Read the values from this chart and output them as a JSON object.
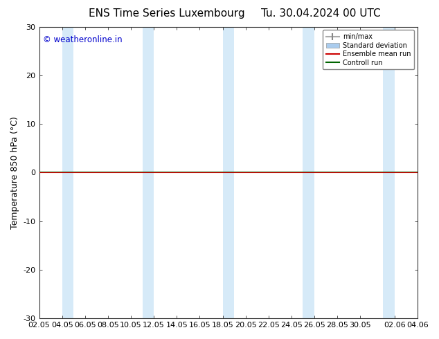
{
  "title_left": "ENS Time Series Luxembourg",
  "title_right": "Tu. 30.04.2024 00 UTC",
  "ylabel": "Temperature 850 hPa (°C)",
  "watermark": "© weatheronline.in",
  "watermark_color": "#0000cc",
  "ylim": [
    -30,
    30
  ],
  "yticks": [
    -30,
    -20,
    -10,
    0,
    10,
    20,
    30
  ],
  "xtick_labels": [
    "02.05",
    "04.05",
    "06.05",
    "08.05",
    "10.05",
    "12.05",
    "14.05",
    "16.05",
    "18.05",
    "20.05",
    "22.05",
    "24.05",
    "26.05",
    "28.05",
    "30.05",
    "02.06",
    "04.06"
  ],
  "background_color": "#ffffff",
  "plot_bg_color": "#ffffff",
  "shaded_band_color": "#d6eaf8",
  "shaded_band_alpha": 1.0,
  "control_run_color": "#006400",
  "ensemble_mean_color": "#cc0000",
  "title_fontsize": 11,
  "axis_fontsize": 9,
  "tick_fontsize": 8,
  "zero_line_y": 0.0
}
